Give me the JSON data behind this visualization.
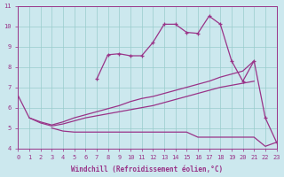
{
  "background_color": "#cce8ee",
  "line_color": "#993388",
  "grid_color": "#99cccc",
  "x": [
    0,
    1,
    2,
    3,
    4,
    5,
    6,
    7,
    8,
    9,
    10,
    11,
    12,
    13,
    14,
    15,
    16,
    17,
    18,
    19,
    20,
    21,
    22,
    23
  ],
  "line_upper": [
    6.6,
    5.5,
    5.3,
    5.15,
    5.3,
    5.5,
    5.65,
    5.8,
    5.95,
    6.1,
    6.3,
    6.45,
    6.55,
    6.7,
    6.85,
    7.0,
    7.15,
    7.3,
    7.5,
    7.65,
    7.8,
    8.3,
    null,
    null
  ],
  "line_mid": [
    null,
    5.5,
    5.25,
    5.1,
    5.2,
    5.35,
    5.5,
    5.6,
    5.7,
    5.8,
    5.9,
    6.0,
    6.1,
    6.25,
    6.4,
    6.55,
    6.7,
    6.85,
    7.0,
    7.1,
    7.2,
    7.3,
    null,
    null
  ],
  "line_flat": [
    null,
    null,
    null,
    5.0,
    4.85,
    4.8,
    4.8,
    4.8,
    4.8,
    4.8,
    4.8,
    4.8,
    4.8,
    4.8,
    4.8,
    4.8,
    4.55,
    4.55,
    4.55,
    4.55,
    4.55,
    4.55,
    4.1,
    4.3
  ],
  "zigzag_x": [
    7,
    8,
    9,
    10,
    11,
    12,
    13,
    14,
    15,
    16,
    17,
    18,
    19,
    20,
    21,
    22,
    23
  ],
  "zigzag_y": [
    7.4,
    8.6,
    8.65,
    8.55,
    8.55,
    9.2,
    10.1,
    10.1,
    9.7,
    9.65,
    10.5,
    10.1,
    8.3,
    7.3,
    8.3,
    5.5,
    4.3
  ],
  "xlim": [
    0,
    23
  ],
  "ylim": [
    4,
    11
  ],
  "yticks": [
    4,
    5,
    6,
    7,
    8,
    9,
    10,
    11
  ],
  "xticks": [
    0,
    1,
    2,
    3,
    4,
    5,
    6,
    7,
    8,
    9,
    10,
    11,
    12,
    13,
    14,
    15,
    16,
    17,
    18,
    19,
    20,
    21,
    22,
    23
  ],
  "xlabel": "Windchill (Refroidissement éolien,°C)",
  "tick_fontsize": 5,
  "label_fontsize": 5.5
}
